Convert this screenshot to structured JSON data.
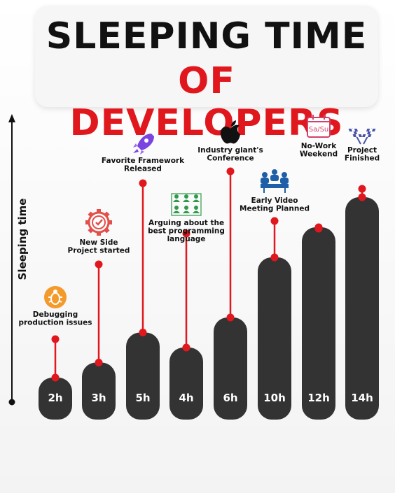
{
  "title_line1": "SLEEPING TIME",
  "title_line2": "OF DEVELOPERS",
  "accent_color": "#e0181e",
  "bar_color": "#333333",
  "chart_data": {
    "type": "bar",
    "title": "SLEEPING TIME OF DEVELOPERS",
    "ylabel": "Sleeping time",
    "xlabel": "",
    "ylim": [
      0,
      14
    ],
    "grid": false,
    "categories": [
      "Debugging production issues",
      "New Side Project started",
      "Favorite Framework Released",
      "Arguing about the best programming language",
      "Industry giant's Conference",
      "Early Video Meeting Planned",
      "No-Work Weekend",
      "Project Finished"
    ],
    "values": [
      2,
      3,
      5,
      4,
      6,
      10,
      12,
      14
    ],
    "value_labels": [
      "2h",
      "3h",
      "5h",
      "4h",
      "6h",
      "10h",
      "12h",
      "14h"
    ],
    "icons": [
      "bug-icon",
      "gear-check-icon",
      "rocket-icon",
      "people-grid-icon",
      "apple-logo-icon",
      "video-meeting-icon",
      "calendar-weekend-icon",
      "checkered-flags-icon"
    ],
    "calendar_text": "Sa/Su"
  }
}
